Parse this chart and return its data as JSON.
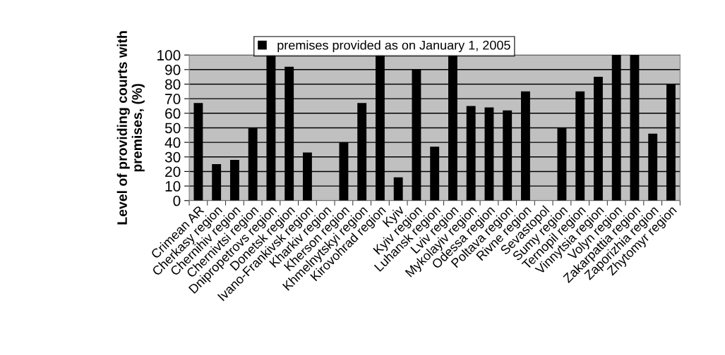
{
  "chart_data": {
    "type": "bar",
    "ylabel": "Level of providing courts with\npremises, (%)",
    "categories": [
      "Crimean AR",
      "Cherkasy region",
      "Chernihiv region",
      "Chernivtsi region",
      "Dnipropetrovs region",
      "Donetsk region",
      "Ivano-Frankivsk region",
      "Kharkiv region",
      "Kherson region",
      "Khmelnytskyi region",
      "Kirovohrad region",
      "Kyiv",
      "Kyiv region",
      "Luhansk region",
      "Lviv region",
      "Mykolayiv region",
      "Odessa region",
      "Poltava region",
      "Rivne region",
      "Sevastopol",
      "Sumy region",
      "Ternopil region",
      "Vinnytsia region",
      "Volyn region",
      "Zakarpattia region",
      "Zaporizhia region",
      "Zhytomyr region"
    ],
    "series": [
      {
        "name": "premises provided as on January 1, 2005",
        "color": "#000000",
        "values": [
          67,
          25,
          28,
          50,
          100,
          92,
          33,
          null,
          40,
          67,
          100,
          16,
          90,
          37,
          100,
          65,
          64,
          62,
          75,
          null,
          50,
          75,
          85,
          100,
          100,
          46,
          80
        ]
      }
    ],
    "ylim": [
      0,
      100
    ],
    "yticks": [
      0,
      10,
      20,
      30,
      40,
      50,
      60,
      70,
      80,
      90,
      100
    ],
    "grid": "y",
    "legend": "top"
  }
}
